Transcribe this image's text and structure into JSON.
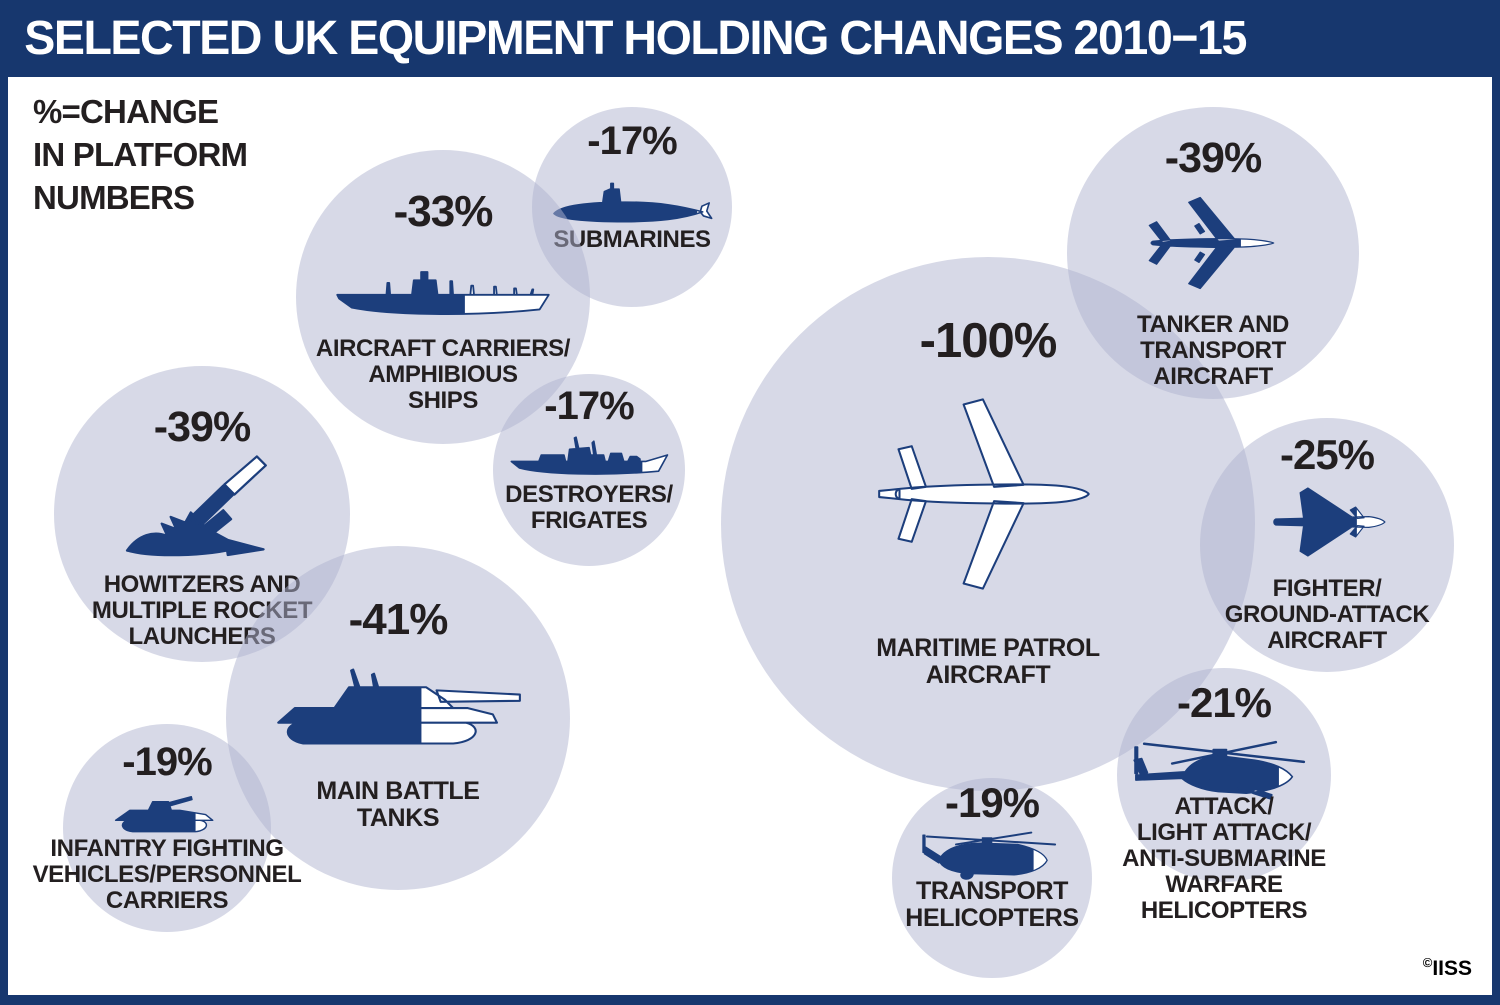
{
  "title": "SELECTED UK EQUIPMENT HOLDING CHANGES 2010−15",
  "legend": {
    "line1": "%=CHANGE",
    "line2": "IN PLATFORM",
    "line3": "NUMBERS"
  },
  "copyright": {
    "symbol": "©",
    "text": "IISS"
  },
  "colors": {
    "frame_navy": "#17376E",
    "icon_navy": "#1C3E7C",
    "bubble_fill": "rgba(176,179,207,0.5)",
    "text": "#231F20",
    "title_text": "#FFFFFF"
  },
  "chart_data": {
    "type": "bubble",
    "title": "SELECTED UK EQUIPMENT HOLDING CHANGES 2010−15",
    "note": "%=CHANGE IN PLATFORM NUMBERS",
    "unit": "percent change in platform numbers 2010-15",
    "items": [
      {
        "id": "submarines",
        "category": "SUBMARINES",
        "change_pct": -17,
        "pct_label": "-17%",
        "icon": "submarine-icon",
        "label_lines": [
          "SUBMARINES"
        ]
      },
      {
        "id": "carriers",
        "category": "AIRCRAFT CARRIERS/AMPHIBIOUS SHIPS",
        "change_pct": -33,
        "pct_label": "-33%",
        "icon": "aircraft-carrier-icon",
        "label_lines": [
          "AIRCRAFT CARRIERS/",
          "AMPHIBIOUS",
          "SHIPS"
        ]
      },
      {
        "id": "destroyers",
        "category": "DESTROYERS/FRIGATES",
        "change_pct": -17,
        "pct_label": "-17%",
        "icon": "destroyer-icon",
        "label_lines": [
          "DESTROYERS/",
          "FRIGATES"
        ]
      },
      {
        "id": "howitzers",
        "category": "HOWITZERS AND MULTIPLE ROCKET LAUNCHERS",
        "change_pct": -39,
        "pct_label": "-39%",
        "icon": "howitzer-icon",
        "label_lines": [
          "HOWITZERS AND",
          "MULTIPLE ROCKET",
          "LAUNCHERS"
        ]
      },
      {
        "id": "mbt",
        "category": "MAIN BATTLE TANKS",
        "change_pct": -41,
        "pct_label": "-41%",
        "icon": "tank-icon",
        "label_lines": [
          "MAIN BATTLE",
          "TANKS"
        ]
      },
      {
        "id": "ifv",
        "category": "INFANTRY FIGHTING VEHICLES/PERSONNEL CARRIERS",
        "change_pct": -19,
        "pct_label": "-19%",
        "icon": "ifv-icon",
        "label_lines": [
          "INFANTRY FIGHTING",
          "VEHICLES/PERSONNEL",
          "CARRIERS"
        ]
      },
      {
        "id": "maritime",
        "category": "MARITIME PATROL AIRCRAFT",
        "change_pct": -100,
        "pct_label": "-100%",
        "icon": "maritime-patrol-aircraft-icon",
        "label_lines": [
          "MARITIME PATROL",
          "AIRCRAFT"
        ]
      },
      {
        "id": "tanker",
        "category": "TANKER AND TRANSPORT AIRCRAFT",
        "change_pct": -39,
        "pct_label": "-39%",
        "icon": "tanker-aircraft-icon",
        "label_lines": [
          "TANKER AND",
          "TRANSPORT",
          "AIRCRAFT"
        ]
      },
      {
        "id": "fighter",
        "category": "FIGHTER/GROUND-ATTACK AIRCRAFT",
        "change_pct": -25,
        "pct_label": "-25%",
        "icon": "fighter-aircraft-icon",
        "label_lines": [
          "FIGHTER/",
          "GROUND-ATTACK",
          "AIRCRAFT"
        ]
      },
      {
        "id": "attack",
        "category": "ATTACK/LIGHT ATTACK/ANTI-SUBMARINE WARFARE HELICOPTERS",
        "change_pct": -21,
        "pct_label": "-21%",
        "icon": "attack-helicopter-icon",
        "label_lines": [
          "ATTACK/",
          "LIGHT ATTACK/",
          "ANTI-SUBMARINE",
          "WARFARE",
          "HELICOPTERS"
        ]
      },
      {
        "id": "transheli",
        "category": "TRANSPORT HELICOPTERS",
        "change_pct": -19,
        "pct_label": "-19%",
        "icon": "transport-helicopter-icon",
        "label_lines": [
          "TRANSPORT",
          "HELICOPTERS"
        ]
      }
    ]
  }
}
